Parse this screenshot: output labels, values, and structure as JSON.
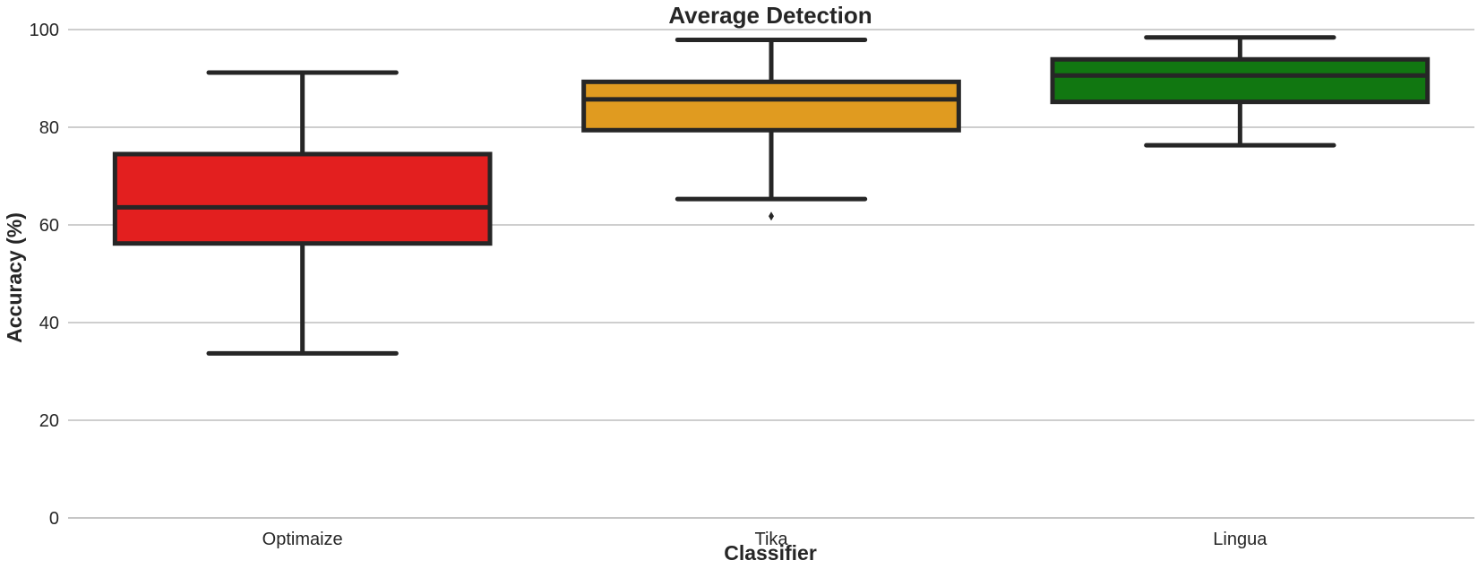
{
  "chart_data": {
    "type": "box",
    "title": "Average Detection",
    "xlabel": "Classifier",
    "ylabel": "Accuracy (%)",
    "ylim": [
      0,
      100
    ],
    "yticks": [
      0,
      20,
      40,
      60,
      80,
      100
    ],
    "grid": "horizontal",
    "categories": [
      "Optimaize",
      "Tika",
      "Lingua"
    ],
    "boxes": [
      {
        "category": "Optimaize",
        "color": "#e31f1f",
        "whisker_low": 33.7,
        "q1": 56.2,
        "median": 63.6,
        "q3": 74.5,
        "whisker_high": 91.2,
        "outliers": []
      },
      {
        "category": "Tika",
        "color": "#e09b20",
        "whisker_low": 65.3,
        "q1": 79.4,
        "median": 85.7,
        "q3": 89.3,
        "whisker_high": 97.9,
        "outliers": [
          61.8
        ]
      },
      {
        "category": "Lingua",
        "color": "#117711",
        "whisker_low": 76.3,
        "q1": 85.2,
        "median": 90.6,
        "q3": 93.9,
        "whisker_high": 98.4,
        "outliers": []
      }
    ]
  }
}
